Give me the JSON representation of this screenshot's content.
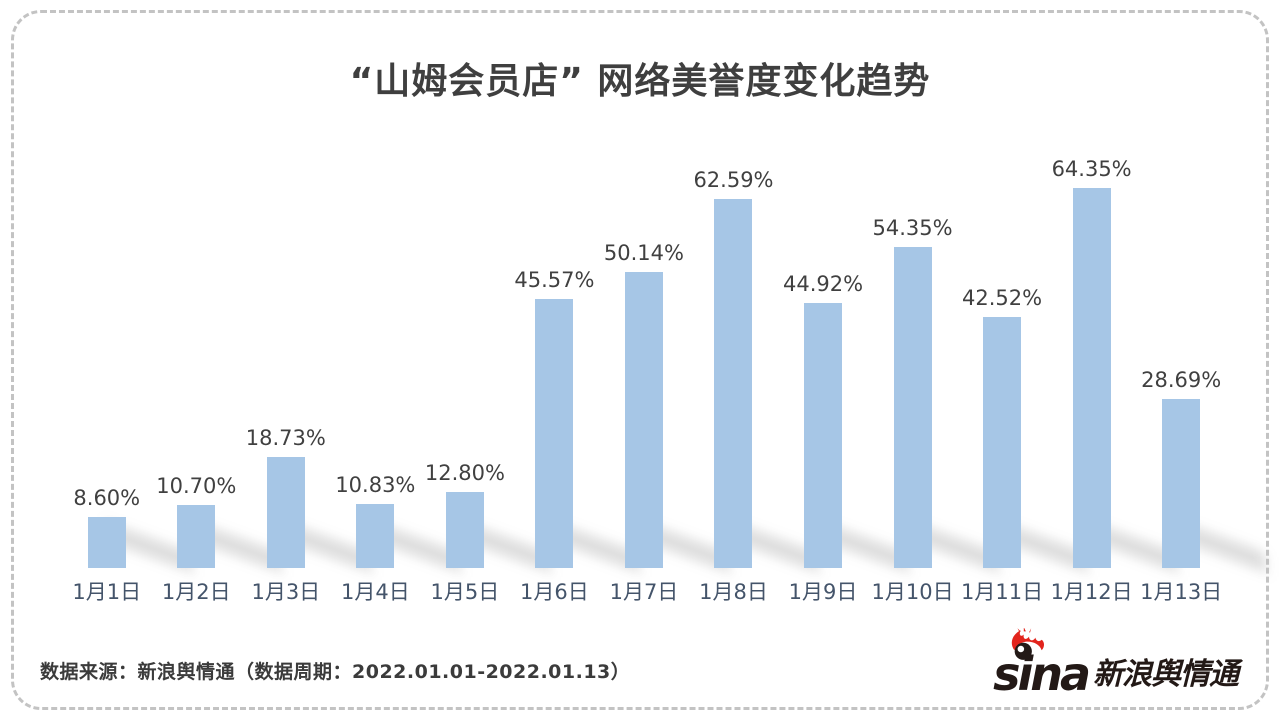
{
  "page": {
    "background": "#ffffff",
    "border_color": "#c3c3c3"
  },
  "chart_data": {
    "type": "bar",
    "title": "“山姆会员店” 网络美誉度变化趋势",
    "categories": [
      "1月1日",
      "1月2日",
      "1月3日",
      "1月4日",
      "1月5日",
      "1月6日",
      "1月7日",
      "1月8日",
      "1月9日",
      "1月10日",
      "1月11日",
      "1月12日",
      "1月13日"
    ],
    "values": [
      8.6,
      10.7,
      18.73,
      10.83,
      12.8,
      45.57,
      50.14,
      62.59,
      44.92,
      54.35,
      42.52,
      64.35,
      28.69
    ],
    "labels": [
      "8.60%",
      "10.70%",
      "18.73%",
      "10.83%",
      "12.80%",
      "45.57%",
      "50.14%",
      "62.59%",
      "44.92%",
      "54.35%",
      "42.52%",
      "64.35%",
      "28.69%"
    ],
    "xlabel": "",
    "ylabel": "",
    "ylim": [
      0,
      70
    ],
    "grid": false,
    "legend": "none",
    "bar_color": "#a6c6e6",
    "value_label_color": "#404040",
    "axis_label_color": "#44546a",
    "title_color": "#3f3f3f"
  },
  "footer": {
    "source_text": "数据来源：新浪舆情通（数据周期：2022.01.01-2022.01.13）",
    "logo": {
      "wordmark": "sina",
      "brand": "新浪舆情通",
      "accent_color": "#e2241c",
      "text_color": "#231916",
      "icon": "sina-eye-icon"
    }
  }
}
